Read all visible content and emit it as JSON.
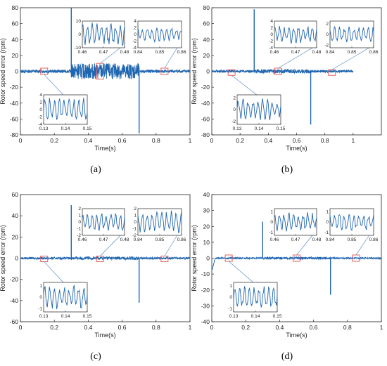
{
  "chart_data": [
    {
      "type": "line",
      "caption": "(a)",
      "xlabel": "Time(s)",
      "ylabel": "Rotor speed error (rpm)",
      "xlim": [
        0,
        1
      ],
      "ylim": [
        -80,
        80
      ],
      "xticks": [
        "0",
        "0.2",
        "0.4",
        "0.6",
        "0.8",
        "1"
      ],
      "yticks": [
        "-80",
        "-60",
        "-40",
        "-20",
        "0",
        "20",
        "40",
        "60",
        "80"
      ],
      "grid": false,
      "signal": {
        "base_amplitude": 2,
        "disturbed_band": [
          0.3,
          0.7
        ],
        "disturbed_amplitude": 10,
        "spikes": [
          {
            "t": 0.3,
            "value": 80
          },
          {
            "t": 0.7,
            "value": -78
          }
        ]
      },
      "zoom_boxes": [
        {
          "t": 0.14,
          "x_range": [
            0.13,
            0.15
          ],
          "y_range": [
            -4,
            4
          ]
        },
        {
          "t": 0.47,
          "x_range": [
            0.46,
            0.48
          ],
          "y_range": [
            -10,
            10
          ]
        },
        {
          "t": 0.85,
          "x_range": [
            0.84,
            0.86
          ],
          "y_range": [
            -4,
            4
          ]
        }
      ],
      "insets": [
        {
          "xticks": [
            "0.13",
            "0.14",
            "0.15"
          ],
          "yticks": [
            "-4",
            "-2",
            "0",
            "2",
            "4"
          ],
          "ylim": [
            -4,
            4
          ],
          "amplitude": 3
        },
        {
          "xticks": [
            "0.46",
            "0.47",
            "0.48"
          ],
          "yticks": [
            "-10",
            "0",
            "10"
          ],
          "ylim": [
            -10,
            10
          ],
          "amplitude": 8
        },
        {
          "xticks": [
            "0.84",
            "0.85",
            "0.86"
          ],
          "yticks": [
            "-4",
            "-2",
            "0",
            "2",
            "4"
          ],
          "ylim": [
            -4,
            4
          ],
          "amplitude": 2
        }
      ]
    },
    {
      "type": "line",
      "caption": "(b)",
      "xlabel": "Time(s)",
      "ylabel": "Rotor speed error (rpm)",
      "xlim": [
        0,
        1.2
      ],
      "ylim": [
        -80,
        80
      ],
      "xticks": [
        "0",
        "0.2",
        "0.4",
        "0.6",
        "0.8",
        "1"
      ],
      "yticks": [
        "-80",
        "-60",
        "-40",
        "-20",
        "0",
        "20",
        "40",
        "60",
        "80"
      ],
      "grid": false,
      "signal": {
        "base_amplitude": 1.5,
        "disturbed_band": [
          0.3,
          0.7
        ],
        "disturbed_amplitude": 2.5,
        "spikes": [
          {
            "t": 0.3,
            "value": 78
          },
          {
            "t": 0.7,
            "value": -67
          }
        ]
      },
      "zoom_boxes": [
        {
          "t": 0.14,
          "x_range": [
            0.13,
            0.15
          ],
          "y_range": [
            -4,
            2
          ]
        },
        {
          "t": 0.47,
          "x_range": [
            0.46,
            0.48
          ],
          "y_range": [
            -4,
            4
          ]
        },
        {
          "t": 0.85,
          "x_range": [
            0.84,
            0.86
          ],
          "y_range": [
            -2,
            2
          ]
        }
      ],
      "insets": [
        {
          "xticks": [
            "0.13",
            "0.14",
            "0.15"
          ],
          "yticks": [
            "-2",
            "0",
            "2"
          ],
          "ylim": [
            -2.5,
            2.5
          ],
          "amplitude": 1.8
        },
        {
          "xticks": [
            "0.46",
            "0.47",
            "0.48"
          ],
          "yticks": [
            "-4",
            "-2",
            "0",
            "2",
            "4"
          ],
          "ylim": [
            -4,
            4
          ],
          "amplitude": 2.5
        },
        {
          "xticks": [
            "0.84",
            "0.85",
            "0.86"
          ],
          "yticks": [
            "-2",
            "0",
            "2"
          ],
          "ylim": [
            -2.5,
            2.5
          ],
          "amplitude": 1.5
        }
      ]
    },
    {
      "type": "line",
      "caption": "(c)",
      "xlabel": "Time(s)",
      "ylabel": "Rotor speed error (rpm)",
      "xlim": [
        0,
        1
      ],
      "ylim": [
        -60,
        60
      ],
      "xticks": [
        "0",
        "0.2",
        "0.4",
        "0.6",
        "0.8",
        "1"
      ],
      "yticks": [
        "-60",
        "-40",
        "-20",
        "0",
        "20",
        "40",
        "60"
      ],
      "grid": false,
      "signal": {
        "base_amplitude": 1,
        "disturbed_band": [
          0.3,
          0.7
        ],
        "disturbed_amplitude": 1.5,
        "spikes": [
          {
            "t": 0.3,
            "value": 50
          },
          {
            "t": 0.7,
            "value": -42
          }
        ]
      },
      "zoom_boxes": [
        {
          "t": 0.14,
          "x_range": [
            0.13,
            0.15
          ],
          "y_range": [
            -2,
            2
          ]
        },
        {
          "t": 0.47,
          "x_range": [
            0.46,
            0.48
          ],
          "y_range": [
            -2,
            2
          ]
        },
        {
          "t": 0.85,
          "x_range": [
            0.84,
            0.86
          ],
          "y_range": [
            -2,
            2
          ]
        }
      ],
      "insets": [
        {
          "xticks": [
            "0.13",
            "0.14",
            "0.15"
          ],
          "yticks": [
            "-1",
            "0",
            "1"
          ],
          "ylim": [
            -1.3,
            1.3
          ],
          "amplitude": 1
        },
        {
          "xticks": [
            "0.46",
            "0.47",
            "0.48"
          ],
          "yticks": [
            "-2",
            "-1",
            "0",
            "1",
            "2"
          ],
          "ylim": [
            -2,
            2
          ],
          "amplitude": 1.4
        },
        {
          "xticks": [
            "0.84",
            "0.85",
            "0.86"
          ],
          "yticks": [
            "-2",
            "-1",
            "0",
            "1",
            "2"
          ],
          "ylim": [
            -2,
            2
          ],
          "amplitude": 1.6
        }
      ]
    },
    {
      "type": "line",
      "caption": "(d)",
      "xlabel": "Time(s)",
      "ylabel": "Rotor speed error (rpm)",
      "xlim": [
        0,
        1
      ],
      "ylim": [
        -40,
        40
      ],
      "xticks": [
        "0",
        "0.2",
        "0.4",
        "0.6",
        "0.8",
        "1"
      ],
      "yticks": [
        "-40",
        "-30",
        "-20",
        "-10",
        "0",
        "10",
        "20",
        "30",
        "40"
      ],
      "grid": false,
      "signal": {
        "base_amplitude": 0.5,
        "disturbed_band": [
          0.3,
          0.7
        ],
        "disturbed_amplitude": 0.8,
        "spikes": [
          {
            "t": 0.3,
            "value": 23
          },
          {
            "t": 0.7,
            "value": -23
          }
        ],
        "startup_dip": -8
      },
      "zoom_boxes": [
        {
          "t": 0.1,
          "x_range": [
            0.13,
            0.15
          ],
          "y_range": [
            -2,
            2
          ]
        },
        {
          "t": 0.5,
          "x_range": [
            0.46,
            0.48
          ],
          "y_range": [
            -2,
            2
          ]
        },
        {
          "t": 0.85,
          "x_range": [
            0.84,
            0.86
          ],
          "y_range": [
            -2,
            2
          ]
        }
      ],
      "insets": [
        {
          "xticks": [
            "0.13",
            "0.14",
            "0.15"
          ],
          "yticks": [
            "-1",
            "0",
            "1"
          ],
          "ylim": [
            -1.3,
            1.3
          ],
          "amplitude": 0.9
        },
        {
          "xticks": [
            "0.46",
            "0.47",
            "0.48"
          ],
          "yticks": [
            "-1",
            "0",
            "1"
          ],
          "ylim": [
            -1.3,
            1.3
          ],
          "amplitude": 0.9
        },
        {
          "xticks": [
            "0.84",
            "0.85",
            "0.86"
          ],
          "yticks": [
            "-1",
            "0",
            "1"
          ],
          "ylim": [
            -1.3,
            1.3
          ],
          "amplitude": 0.8
        }
      ]
    }
  ],
  "colors": {
    "signal": "#1f66b0",
    "zoom_box": "#e05555",
    "leader": "#4a7fc0",
    "axis": "#222222"
  }
}
